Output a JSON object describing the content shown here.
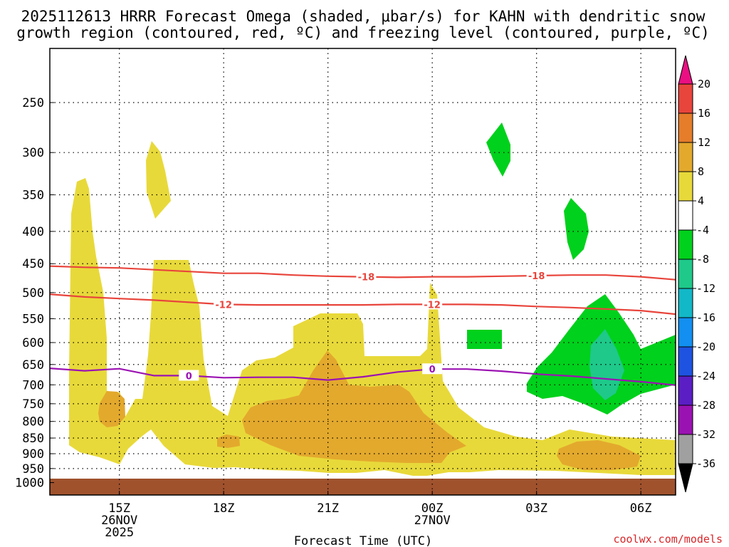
{
  "chart_data": {
    "type": "time-height cross section",
    "title": [
      "2025112613 HRRR Forecast Omega (shaded, μbar/s) for KAHN with dendritic snow",
      "growth region (contoured, red, ºC) and freezing level (contoured, purple, ºC)"
    ],
    "xlabel": "Forecast Time (UTC)",
    "ylabel": "",
    "x_ticks": [
      {
        "hour": 15,
        "label": "15Z",
        "sub1": "26NOV",
        "sub2": "2025"
      },
      {
        "hour": 18,
        "label": "18Z",
        "sub1": "",
        "sub2": ""
      },
      {
        "hour": 21,
        "label": "21Z",
        "sub1": "",
        "sub2": ""
      },
      {
        "hour": 24,
        "label": "00Z",
        "sub1": "27NOV",
        "sub2": ""
      },
      {
        "hour": 27,
        "label": "03Z",
        "sub1": "",
        "sub2": ""
      },
      {
        "hour": 30,
        "label": "06Z",
        "sub1": "",
        "sub2": ""
      }
    ],
    "xlim": [
      13,
      31
    ],
    "ylim": [
      1035,
      200
    ],
    "y_ticks": [
      250,
      300,
      350,
      400,
      450,
      500,
      550,
      600,
      650,
      700,
      750,
      800,
      850,
      900,
      950,
      1000
    ],
    "ground_level_hPa": 980,
    "contours": [
      {
        "name": "-18",
        "label": "-18",
        "color": "#e8453c",
        "points": [
          [
            13,
            454
          ],
          [
            14,
            456
          ],
          [
            15,
            457
          ],
          [
            16,
            460
          ],
          [
            17,
            463
          ],
          [
            18,
            466
          ],
          [
            19,
            466
          ],
          [
            20,
            469
          ],
          [
            21,
            471
          ],
          [
            22,
            472
          ],
          [
            23,
            473
          ],
          [
            24,
            472
          ],
          [
            25,
            472
          ],
          [
            26,
            471
          ],
          [
            27,
            470
          ],
          [
            28,
            469
          ],
          [
            29,
            469
          ],
          [
            30,
            472
          ],
          [
            31,
            477
          ]
        ],
        "label_at": [
          [
            22.1,
            472
          ],
          [
            27,
            470
          ]
        ]
      },
      {
        "name": "-12",
        "label": "-12",
        "color": "#e8453c",
        "points": [
          [
            13,
            503
          ],
          [
            14,
            508
          ],
          [
            15,
            511
          ],
          [
            16,
            514
          ],
          [
            17,
            518
          ],
          [
            18,
            522
          ],
          [
            19,
            523
          ],
          [
            20,
            523
          ],
          [
            21,
            523
          ],
          [
            22,
            523
          ],
          [
            23,
            522
          ],
          [
            24,
            522
          ],
          [
            25,
            522
          ],
          [
            26,
            523
          ],
          [
            27,
            526
          ],
          [
            28,
            528
          ],
          [
            29,
            531
          ],
          [
            30,
            534
          ],
          [
            31,
            541
          ]
        ],
        "label_at": [
          [
            18,
            522
          ],
          [
            24,
            522
          ]
        ]
      },
      {
        "name": "0",
        "label": "0",
        "color": "#9b12b2",
        "points": [
          [
            13,
            659
          ],
          [
            14,
            665
          ],
          [
            15,
            660
          ],
          [
            16,
            677
          ],
          [
            17,
            677
          ],
          [
            18,
            682
          ],
          [
            19,
            681
          ],
          [
            20,
            681
          ],
          [
            21,
            688
          ],
          [
            22,
            680
          ],
          [
            23,
            668
          ],
          [
            24,
            661
          ],
          [
            25,
            661
          ],
          [
            26,
            666
          ],
          [
            27,
            673
          ],
          [
            28,
            678
          ],
          [
            29,
            685
          ],
          [
            30,
            692
          ],
          [
            31,
            701
          ]
        ],
        "label_at": [
          [
            17,
            677
          ],
          [
            24,
            661
          ]
        ]
      }
    ],
    "omega_regions": [
      {
        "value_range": "4 to 8",
        "color": "#e8d93a"
      },
      {
        "value_range": "8 to 12",
        "color": "#e3a92d"
      },
      {
        "value_range": "-8 to -4",
        "color": "#00d11c"
      },
      {
        "value_range": "-12 to -8",
        "color": "#1ec98a"
      }
    ],
    "colorbar": {
      "levels": [
        "20",
        "16",
        "12",
        "8",
        "4",
        "-4",
        "-8",
        "-12",
        "-16",
        "-20",
        "-24",
        "-28",
        "-32",
        "-36"
      ],
      "colors": [
        "#ea0f82",
        "#e8453c",
        "#e57d2b",
        "#e3a92d",
        "#e8d93a",
        "#ffffff",
        "#00d11c",
        "#1ec98a",
        "#12b8c7",
        "#128ff0",
        "#1e52e0",
        "#5a1ec4",
        "#9b12b2",
        "#a0a0a0",
        "#000000"
      ]
    },
    "ground_color": "#a0522d",
    "credit": "coolwx.com/models"
  }
}
